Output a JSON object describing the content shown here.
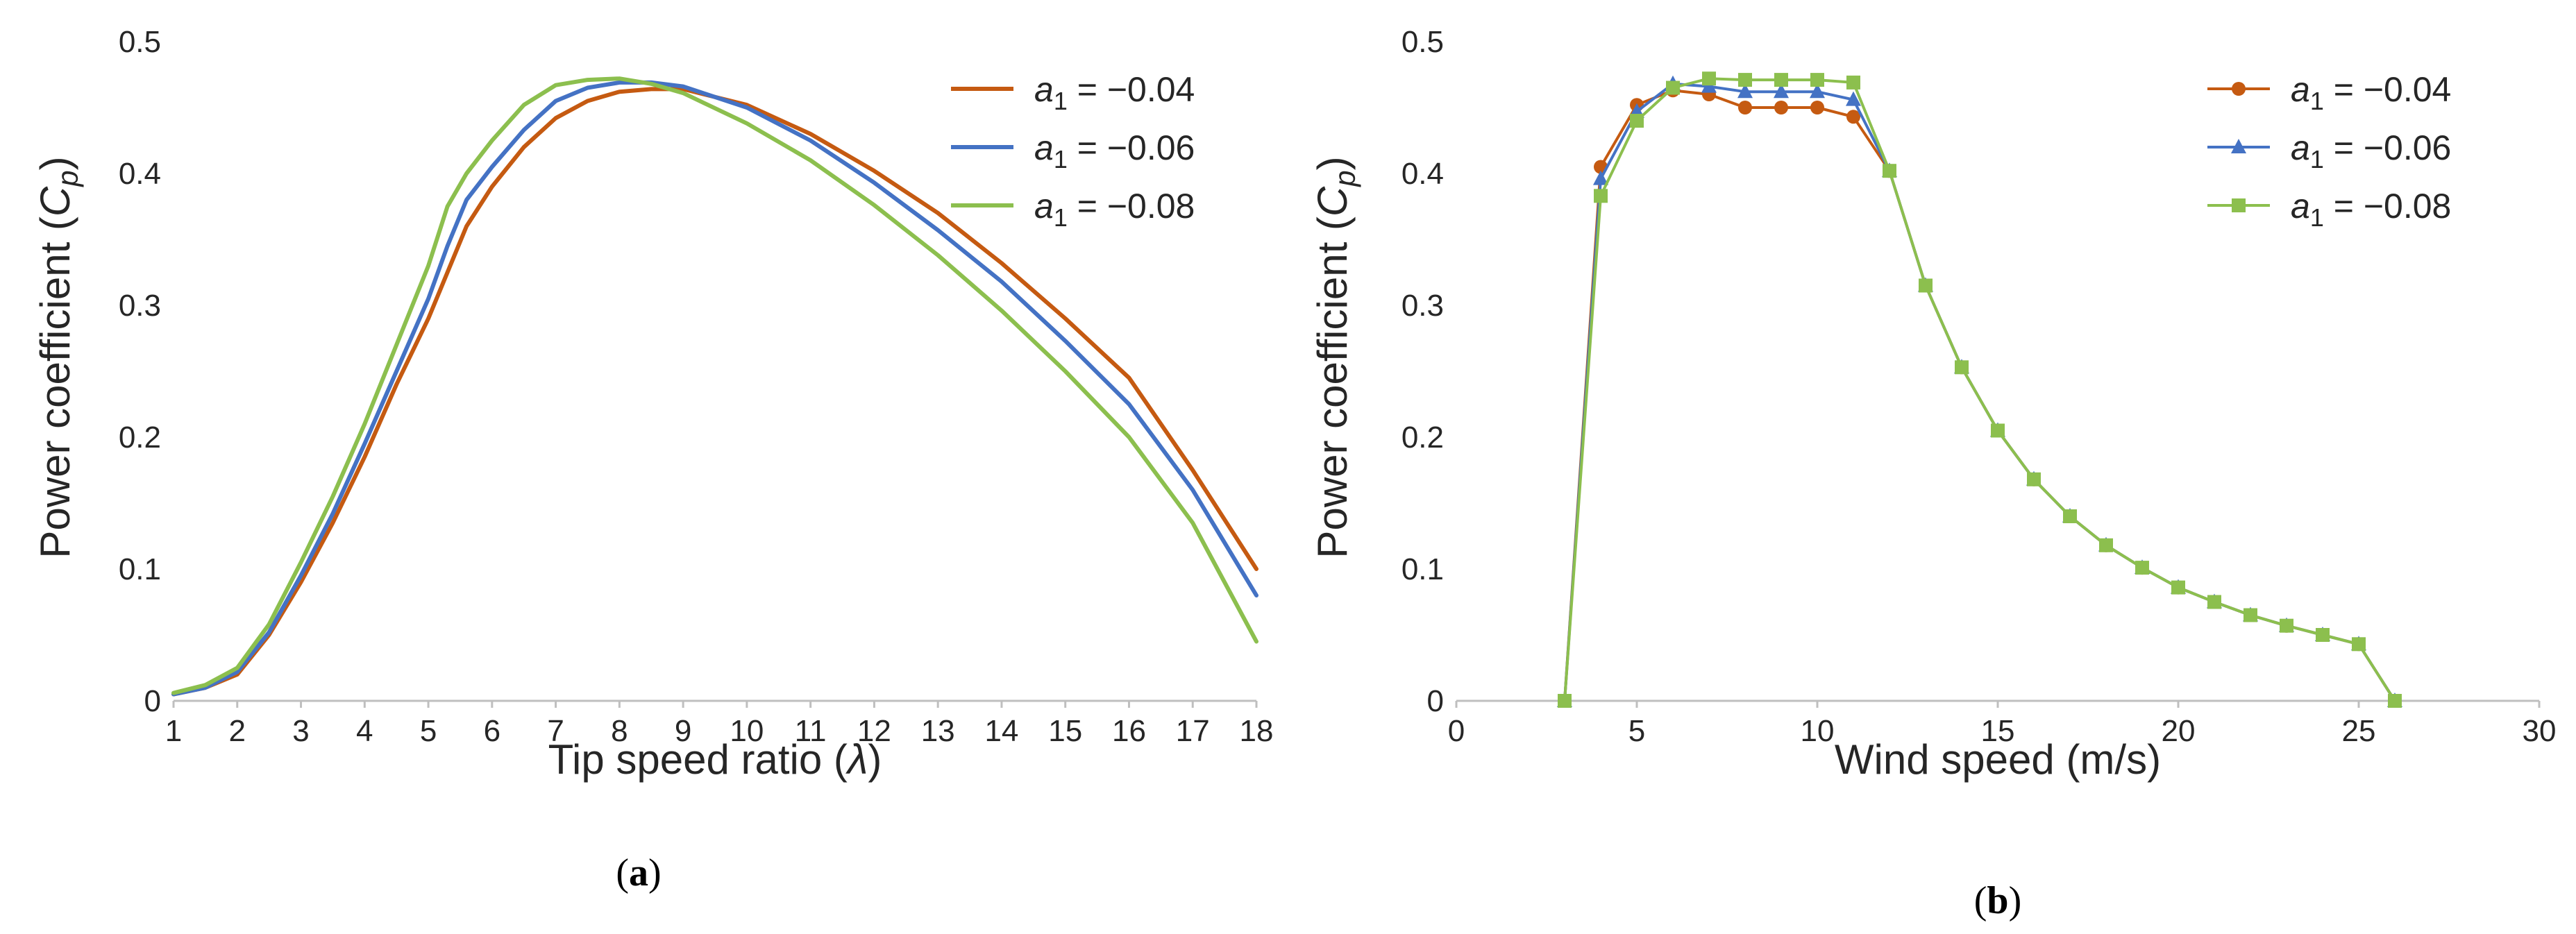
{
  "colors": {
    "a1_004": "#C55A11",
    "a1_006": "#4472C4",
    "a1_008": "#8CBF4E"
  },
  "chart_data": [
    {
      "type": "line",
      "panel_label": "a",
      "xlabel_prefix": "Tip speed ratio (",
      "xlabel_symbol": "λ",
      "xlabel_suffix": ")",
      "ylabel_prefix": "Power coefficient (",
      "ylabel_symbol": "C",
      "ylabel_subscript": "p",
      "ylabel_suffix": ")",
      "xlim": [
        1,
        18
      ],
      "ylim": [
        0,
        0.5
      ],
      "xticks": [
        1,
        2,
        3,
        4,
        5,
        6,
        7,
        8,
        9,
        10,
        11,
        12,
        13,
        14,
        15,
        16,
        17,
        18
      ],
      "yticks": [
        0,
        0.1,
        0.2,
        0.3,
        0.4,
        0.5
      ],
      "ytick_labels": [
        "0",
        "0.1",
        "0.2",
        "0.3",
        "0.4",
        "0.5"
      ],
      "legend_position": "top-right",
      "series": [
        {
          "name": "a1 = −0.04",
          "legend": {
            "symbol": "a",
            "subscript": "1",
            "text": " = −0.04"
          },
          "color": "#C55A11",
          "x": [
            1,
            1.5,
            2,
            2.5,
            3,
            3.5,
            4,
            4.5,
            5,
            5.3,
            5.6,
            6,
            6.5,
            7,
            7.5,
            8,
            8.5,
            9,
            10,
            11,
            12,
            13,
            14,
            15,
            16,
            17,
            18
          ],
          "y": [
            0.005,
            0.01,
            0.02,
            0.05,
            0.09,
            0.135,
            0.185,
            0.24,
            0.29,
            0.325,
            0.36,
            0.39,
            0.42,
            0.442,
            0.455,
            0.462,
            0.464,
            0.464,
            0.452,
            0.43,
            0.402,
            0.37,
            0.332,
            0.29,
            0.245,
            0.175,
            0.1
          ]
        },
        {
          "name": "a1 = −0.06",
          "legend": {
            "symbol": "a",
            "subscript": "1",
            "text": " = −0.06"
          },
          "color": "#4472C4",
          "x": [
            1,
            1.5,
            2,
            2.5,
            3,
            3.5,
            4,
            4.5,
            5,
            5.3,
            5.6,
            6,
            6.5,
            7,
            7.5,
            8,
            8.5,
            9,
            10,
            11,
            12,
            13,
            14,
            15,
            16,
            17,
            18
          ],
          "y": [
            0.005,
            0.01,
            0.022,
            0.052,
            0.095,
            0.142,
            0.195,
            0.25,
            0.305,
            0.345,
            0.38,
            0.405,
            0.433,
            0.455,
            0.465,
            0.469,
            0.469,
            0.466,
            0.45,
            0.425,
            0.393,
            0.357,
            0.318,
            0.273,
            0.225,
            0.16,
            0.08
          ]
        },
        {
          "name": "a1 = −0.08",
          "legend": {
            "symbol": "a",
            "subscript": "1",
            "text": " = −0.08"
          },
          "color": "#8CBF4E",
          "x": [
            1,
            1.5,
            2,
            2.5,
            3,
            3.5,
            4,
            4.5,
            5,
            5.3,
            5.6,
            6,
            6.5,
            7,
            7.5,
            8,
            8.5,
            9,
            10,
            11,
            12,
            13,
            14,
            15,
            16,
            17,
            18
          ],
          "y": [
            0.006,
            0.012,
            0.025,
            0.058,
            0.105,
            0.155,
            0.21,
            0.27,
            0.33,
            0.375,
            0.4,
            0.425,
            0.452,
            0.467,
            0.471,
            0.472,
            0.468,
            0.461,
            0.438,
            0.41,
            0.376,
            0.338,
            0.296,
            0.25,
            0.2,
            0.135,
            0.045
          ]
        }
      ]
    },
    {
      "type": "line",
      "panel_label": "b",
      "xlabel": "Wind speed (m/s)",
      "ylabel_prefix": "Power coefficient (",
      "ylabel_symbol": "C",
      "ylabel_subscript": "p",
      "ylabel_suffix": ")",
      "xlim": [
        0,
        30
      ],
      "ylim": [
        0,
        0.5
      ],
      "xticks": [
        0,
        5,
        10,
        15,
        20,
        25,
        30
      ],
      "yticks": [
        0,
        0.1,
        0.2,
        0.3,
        0.4,
        0.5
      ],
      "ytick_labels": [
        "0",
        "0.1",
        "0.2",
        "0.3",
        "0.4",
        "0.5"
      ],
      "legend_position": "top-right",
      "series": [
        {
          "name": "a1 = −0.04",
          "legend": {
            "symbol": "a",
            "subscript": "1",
            "text": " = −0.04"
          },
          "color": "#C55A11",
          "marker": "circle",
          "x": [
            3,
            4,
            5,
            6,
            7,
            8,
            9,
            10,
            11,
            12,
            13,
            14,
            15,
            16,
            17,
            18,
            19,
            20,
            21,
            22,
            23,
            24,
            25,
            26
          ],
          "y": [
            0,
            0.405,
            0.452,
            0.463,
            0.46,
            0.45,
            0.45,
            0.45,
            0.443,
            0.402,
            0.315,
            0.253,
            0.205,
            0.168,
            0.14,
            0.118,
            0.101,
            0.086,
            0.075,
            0.065,
            0.057,
            0.05,
            0.043,
            0
          ]
        },
        {
          "name": "a1 = −0.06",
          "legend": {
            "symbol": "a",
            "subscript": "1",
            "text": " = −0.06"
          },
          "color": "#4472C4",
          "marker": "triangle",
          "x": [
            3,
            4,
            5,
            6,
            7,
            8,
            9,
            10,
            11,
            12,
            13,
            14,
            15,
            16,
            17,
            18,
            19,
            20,
            21,
            22,
            23,
            24,
            25,
            26
          ],
          "y": [
            0,
            0.396,
            0.447,
            0.468,
            0.466,
            0.462,
            0.462,
            0.462,
            0.456,
            0.402,
            0.315,
            0.253,
            0.205,
            0.168,
            0.14,
            0.118,
            0.101,
            0.086,
            0.075,
            0.065,
            0.057,
            0.05,
            0.043,
            0
          ]
        },
        {
          "name": "a1 = −0.08",
          "legend": {
            "symbol": "a",
            "subscript": "1",
            "text": " = −0.08"
          },
          "color": "#8CBF4E",
          "marker": "square",
          "x": [
            3,
            4,
            5,
            6,
            7,
            8,
            9,
            10,
            11,
            12,
            13,
            14,
            15,
            16,
            17,
            18,
            19,
            20,
            21,
            22,
            23,
            24,
            25,
            26
          ],
          "y": [
            0,
            0.383,
            0.44,
            0.465,
            0.472,
            0.471,
            0.471,
            0.471,
            0.469,
            0.402,
            0.315,
            0.253,
            0.205,
            0.168,
            0.14,
            0.118,
            0.101,
            0.086,
            0.075,
            0.065,
            0.057,
            0.05,
            0.043,
            0
          ]
        }
      ]
    }
  ]
}
